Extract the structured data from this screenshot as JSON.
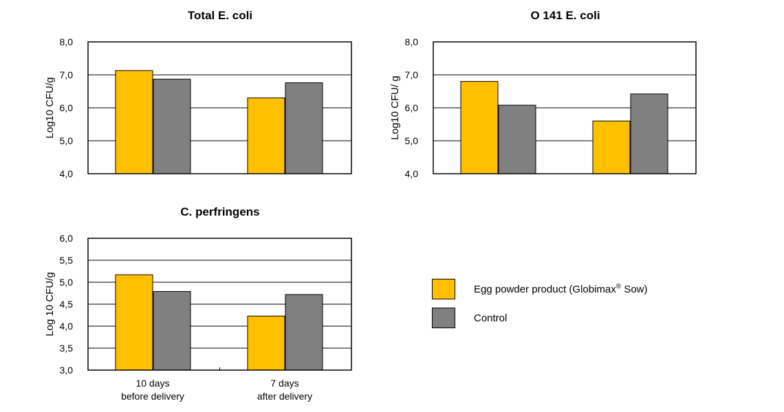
{
  "chart_data": [
    {
      "type": "bar",
      "title": "Total E. coli",
      "ylabel": "Log10 CFU/g",
      "ylim": [
        4.0,
        8.0
      ],
      "yticks": [
        "8,0",
        "7,0",
        "6,0",
        "5,0",
        "4,0"
      ],
      "categories": [
        "10 days before delivery",
        "7 days after delivery"
      ],
      "series": [
        {
          "name": "Egg powder product (Globimax® Sow)",
          "values": [
            7.13,
            6.3
          ]
        },
        {
          "name": "Control",
          "values": [
            6.87,
            6.76
          ]
        }
      ]
    },
    {
      "type": "bar",
      "title": "O 141 E. coli",
      "ylabel": "Log10 CFU/ g",
      "ylim": [
        4.0,
        8.0
      ],
      "yticks": [
        "8,0",
        "7,0",
        "6,0",
        "5,0",
        "4,0"
      ],
      "categories": [
        "10 days before delivery",
        "7 days after delivery"
      ],
      "series": [
        {
          "name": "Egg powder product (Globimax® Sow)",
          "values": [
            6.8,
            5.6
          ]
        },
        {
          "name": "Control",
          "values": [
            6.08,
            6.42
          ]
        }
      ]
    },
    {
      "type": "bar",
      "title": "C. perfringens",
      "ylabel": "Log 10 CFU/g",
      "ylim": [
        3.0,
        6.0
      ],
      "yticks": [
        "6,0",
        "5,5",
        "5,0",
        "4,5",
        "4,0",
        "3,5",
        "3,0"
      ],
      "xticks": [
        {
          "line1": "10 days",
          "line2": "before delivery"
        },
        {
          "line1": "7 days",
          "line2": "after delivery"
        }
      ],
      "categories": [
        "10 days before delivery",
        "7 days after delivery"
      ],
      "series": [
        {
          "name": "Egg powder product (Globimax® Sow)",
          "values": [
            5.17,
            4.23
          ]
        },
        {
          "name": "Control",
          "values": [
            4.79,
            4.72
          ]
        }
      ]
    }
  ],
  "legend": {
    "items": [
      {
        "label": "Egg powder product (Globimax",
        "sup": "®",
        "suffix": " Sow)",
        "color": "#FFC000"
      },
      {
        "label": "Control",
        "color": "#808080"
      }
    ]
  },
  "colors": {
    "egg": "#FFC000",
    "control": "#808080",
    "grid": "#000000"
  }
}
